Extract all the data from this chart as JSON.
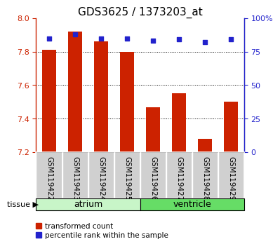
{
  "title": "GDS3625 / 1373203_at",
  "samples": [
    "GSM119422",
    "GSM119423",
    "GSM119424",
    "GSM119425",
    "GSM119426",
    "GSM119427",
    "GSM119428",
    "GSM119429"
  ],
  "transformed_count": [
    7.81,
    7.92,
    7.86,
    7.8,
    7.47,
    7.55,
    7.28,
    7.5
  ],
  "percentile_rank": [
    85,
    88,
    85,
    85,
    83,
    84,
    82,
    84
  ],
  "ylim_left": [
    7.2,
    8.0
  ],
  "ylim_right": [
    0,
    100
  ],
  "yticks_left": [
    7.2,
    7.4,
    7.6,
    7.8,
    8.0
  ],
  "yticks_right": [
    0,
    25,
    50,
    75,
    100
  ],
  "groups": [
    {
      "label": "atrium",
      "start": 0,
      "end": 3,
      "color": "#c8f5c8"
    },
    {
      "label": "ventricle",
      "start": 4,
      "end": 7,
      "color": "#66dd66"
    }
  ],
  "bar_color": "#cc2200",
  "dot_color": "#2222cc",
  "bar_bottom": 7.2,
  "tick_bg_color": "#d0d0d0",
  "tissue_label": "tissue",
  "legend_bar_label": "transformed count",
  "legend_dot_label": "percentile rank within the sample",
  "grid_lines": [
    7.4,
    7.6,
    7.8
  ],
  "title_fontsize": 11,
  "label_fontsize": 7.5,
  "group_fontsize": 9
}
